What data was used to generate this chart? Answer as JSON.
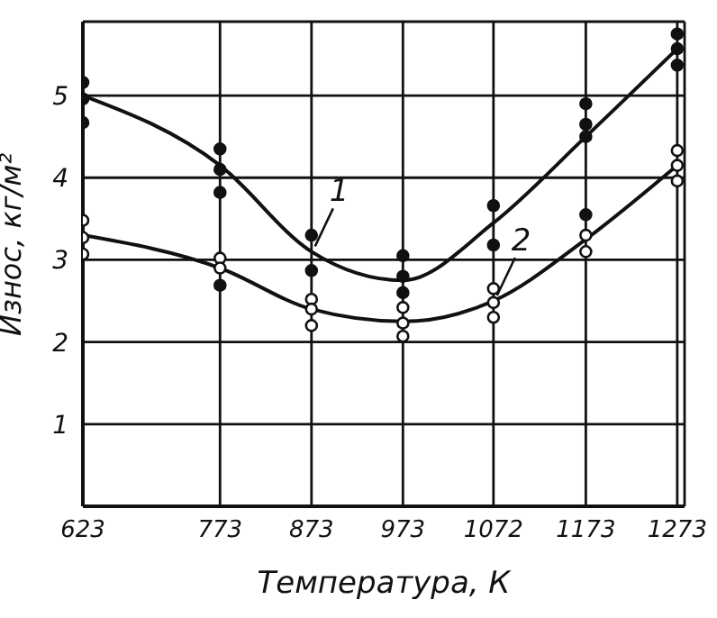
{
  "chart_data": {
    "type": "line",
    "xlabel": "Температура, К",
    "ylabel": "Износ, кг/м²",
    "x": [
      623,
      773,
      873,
      973,
      1072,
      1173,
      1273
    ],
    "series": [
      {
        "color": "#111111",
        "values": [
          5.0,
          4.15,
          3.1,
          2.75,
          3.45,
          4.5,
          5.57
        ],
        "marker": "none"
      },
      {
        "color": "#111111",
        "values": [
          3.3,
          2.9,
          2.4,
          2.25,
          2.5,
          3.25,
          4.15
        ],
        "marker": "none"
      },
      {
        "type": "scatter",
        "color": "#111111",
        "marker": "circle",
        "x": [
          623,
          623,
          623,
          773,
          773,
          773,
          773,
          873,
          873,
          973,
          973,
          973,
          1072,
          1072,
          1173,
          1173,
          1173,
          1173,
          1273,
          1273,
          1273
        ],
        "values": [
          5.16,
          4.96,
          4.67,
          4.35,
          4.1,
          3.82,
          2.69,
          3.3,
          2.87,
          3.05,
          2.8,
          2.6,
          3.66,
          3.18,
          4.9,
          4.65,
          4.5,
          3.55,
          5.75,
          5.57,
          5.37
        ]
      },
      {
        "type": "scatter",
        "color": "#ffffff",
        "marker": "circle",
        "x": [
          623,
          623,
          623,
          773,
          773,
          873,
          873,
          873,
          973,
          973,
          973,
          1072,
          1072,
          1072,
          1173,
          1173,
          1273,
          1273,
          1273
        ],
        "values": [
          3.48,
          3.27,
          3.07,
          3.02,
          2.9,
          2.52,
          2.4,
          2.2,
          2.42,
          2.23,
          2.07,
          2.65,
          2.48,
          2.3,
          3.3,
          3.1,
          4.33,
          4.15,
          3.96
        ]
      }
    ],
    "annotations": [
      {
        "text": "1",
        "x": 873,
        "y": 3.1
      },
      {
        "text": "2",
        "x": 1072,
        "y": 2.5
      }
    ],
    "xlim": [
      623,
      1281
    ],
    "xticks": [
      623,
      773,
      873,
      973,
      1072,
      1173,
      1273
    ],
    "ylim": [
      0,
      5.9
    ],
    "yticks": [
      1,
      2,
      3,
      4,
      5
    ],
    "grid": true
  }
}
